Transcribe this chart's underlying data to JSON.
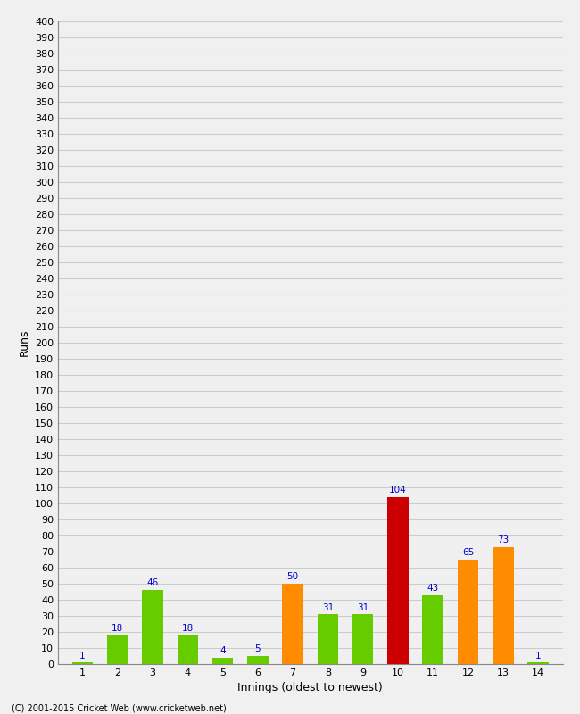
{
  "title": "",
  "xlabel": "Innings (oldest to newest)",
  "ylabel": "Runs",
  "copyright": "(C) 2001-2015 Cricket Web (www.cricketweb.net)",
  "values": [
    1,
    18,
    46,
    18,
    4,
    5,
    50,
    31,
    31,
    104,
    43,
    65,
    73,
    1
  ],
  "innings": [
    1,
    2,
    3,
    4,
    5,
    6,
    7,
    8,
    9,
    10,
    11,
    12,
    13,
    14
  ],
  "bar_colors": [
    "#66cc00",
    "#66cc00",
    "#66cc00",
    "#66cc00",
    "#66cc00",
    "#66cc00",
    "#ff8c00",
    "#66cc00",
    "#66cc00",
    "#cc0000",
    "#66cc00",
    "#ff8c00",
    "#ff8c00",
    "#66cc00"
  ],
  "ylim": [
    0,
    400
  ],
  "ytick_step": 10,
  "background_color": "#f0f0f0",
  "plot_background": "#f0f0f0",
  "grid_color": "#cccccc",
  "label_color": "#0000cc",
  "label_fontsize": 7.5,
  "axis_fontsize": 8,
  "title_fontsize": 10,
  "bar_width": 0.6
}
